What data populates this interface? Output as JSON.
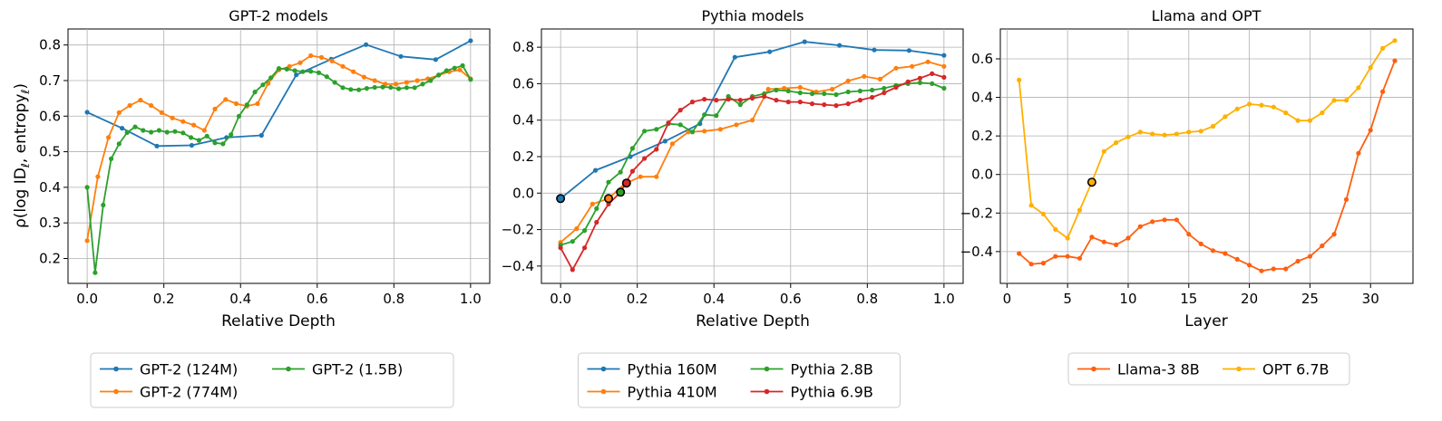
{
  "figure": {
    "ylabel": "ρ(log ID",
    "ylabel_sub": "ℓ",
    "ylabel_mid": ", entropy",
    "ylabel_sub2": "ℓ",
    "ylabel_end": ")"
  },
  "chart_data": [
    {
      "type": "line",
      "title": "GPT-2 models",
      "xlabel": "Relative Depth",
      "ylabel": "ρ(log IDℓ, entropyℓ)",
      "xlim": [
        -0.05,
        1.05
      ],
      "ylim": [
        0.13,
        0.845
      ],
      "xticks": [
        0.0,
        0.2,
        0.4,
        0.6,
        0.8,
        1.0
      ],
      "xtick_labels": [
        "0.0",
        "0.2",
        "0.4",
        "0.6",
        "0.8",
        "1.0"
      ],
      "yticks": [
        0.2,
        0.3,
        0.4,
        0.5,
        0.6,
        0.7,
        0.8
      ],
      "ytick_labels": [
        "0.2",
        "0.3",
        "0.4",
        "0.5",
        "0.6",
        "0.7",
        "0.8"
      ],
      "grid": true,
      "legend_position": "bottom",
      "legend_columns": 2,
      "series": [
        {
          "name": "GPT-2 (124M)",
          "color": "#1f77b4",
          "x": [
            0.0,
            0.0909,
            0.1818,
            0.2727,
            0.3636,
            0.4545,
            0.5455,
            0.6364,
            0.7273,
            0.8182,
            0.9091,
            1.0
          ],
          "y": [
            0.611,
            0.566,
            0.516,
            0.518,
            0.54,
            0.546,
            0.716,
            0.76,
            0.801,
            0.768,
            0.759,
            0.812
          ]
        },
        {
          "name": "GPT-2 (774M)",
          "color": "#ff7f0e",
          "x": [
            0.0,
            0.0278,
            0.0556,
            0.0833,
            0.1111,
            0.1389,
            0.1667,
            0.1944,
            0.2222,
            0.25,
            0.2778,
            0.3056,
            0.3333,
            0.3611,
            0.3889,
            0.4167,
            0.4444,
            0.4722,
            0.5,
            0.5278,
            0.5556,
            0.5833,
            0.6111,
            0.6389,
            0.6667,
            0.6944,
            0.7222,
            0.75,
            0.7778,
            0.8056,
            0.8333,
            0.8611,
            0.8889,
            0.9167,
            0.9444,
            0.9722,
            1.0
          ],
          "y": [
            0.25,
            0.43,
            0.54,
            0.61,
            0.63,
            0.645,
            0.63,
            0.61,
            0.595,
            0.585,
            0.575,
            0.56,
            0.62,
            0.647,
            0.635,
            0.628,
            0.635,
            0.692,
            0.73,
            0.74,
            0.75,
            0.77,
            0.765,
            0.755,
            0.74,
            0.725,
            0.71,
            0.7,
            0.69,
            0.69,
            0.695,
            0.7,
            0.705,
            0.715,
            0.725,
            0.73,
            0.705
          ]
        },
        {
          "name": "GPT-2 (1.5B)",
          "color": "#2ca02c",
          "x": [
            0.0,
            0.0208,
            0.0417,
            0.0625,
            0.0833,
            0.1042,
            0.125,
            0.1458,
            0.1667,
            0.1875,
            0.2083,
            0.2292,
            0.25,
            0.2708,
            0.2917,
            0.3125,
            0.3333,
            0.3542,
            0.375,
            0.3958,
            0.4167,
            0.4375,
            0.4583,
            0.4792,
            0.5,
            0.5208,
            0.5417,
            0.5625,
            0.5833,
            0.6042,
            0.625,
            0.6458,
            0.6667,
            0.6875,
            0.7083,
            0.7292,
            0.75,
            0.7708,
            0.7917,
            0.8125,
            0.8333,
            0.8542,
            0.875,
            0.8958,
            0.9167,
            0.9375,
            0.9583,
            0.9792,
            1.0
          ],
          "y": [
            0.4,
            0.16,
            0.35,
            0.48,
            0.522,
            0.554,
            0.57,
            0.56,
            0.555,
            0.56,
            0.555,
            0.557,
            0.553,
            0.54,
            0.532,
            0.544,
            0.525,
            0.522,
            0.548,
            0.6,
            0.632,
            0.668,
            0.688,
            0.708,
            0.734,
            0.732,
            0.728,
            0.725,
            0.726,
            0.722,
            0.711,
            0.695,
            0.68,
            0.675,
            0.674,
            0.678,
            0.681,
            0.682,
            0.681,
            0.677,
            0.68,
            0.68,
            0.69,
            0.7,
            0.716,
            0.728,
            0.735,
            0.742,
            0.703
          ]
        }
      ],
      "highlights": []
    },
    {
      "type": "line",
      "title": "Pythia models",
      "xlabel": "Relative Depth",
      "xlim": [
        -0.05,
        1.05
      ],
      "ylim": [
        -0.495,
        0.9
      ],
      "xticks": [
        0.0,
        0.2,
        0.4,
        0.6,
        0.8,
        1.0
      ],
      "xtick_labels": [
        "0.0",
        "0.2",
        "0.4",
        "0.6",
        "0.8",
        "1.0"
      ],
      "yticks": [
        -0.4,
        -0.2,
        0.0,
        0.2,
        0.4,
        0.6,
        0.8
      ],
      "ytick_labels": [
        "−0.4",
        "−0.2",
        "0.0",
        "0.2",
        "0.4",
        "0.6",
        "0.8"
      ],
      "grid": true,
      "legend_position": "bottom",
      "legend_columns": 2,
      "series": [
        {
          "name": "Pythia 160M",
          "color": "#1f77b4",
          "x": [
            0.0,
            0.0909,
            0.1818,
            0.2727,
            0.3636,
            0.4545,
            0.5455,
            0.6364,
            0.7273,
            0.8182,
            0.9091,
            1.0
          ],
          "y": [
            -0.03,
            0.125,
            0.2,
            0.285,
            0.38,
            0.745,
            0.775,
            0.83,
            0.81,
            0.785,
            0.782,
            0.755
          ]
        },
        {
          "name": "Pythia 410M",
          "color": "#ff7f0e",
          "x": [
            0.0,
            0.0417,
            0.0833,
            0.125,
            0.1667,
            0.2083,
            0.25,
            0.2917,
            0.3333,
            0.375,
            0.4167,
            0.4583,
            0.5,
            0.5417,
            0.5833,
            0.625,
            0.6667,
            0.7083,
            0.75,
            0.7917,
            0.8333,
            0.875,
            0.9167,
            0.9583,
            1.0
          ],
          "y": [
            -0.27,
            -0.195,
            -0.06,
            -0.03,
            0.05,
            0.09,
            0.09,
            0.27,
            0.335,
            0.34,
            0.35,
            0.375,
            0.4,
            0.57,
            0.575,
            0.58,
            0.555,
            0.57,
            0.615,
            0.64,
            0.625,
            0.685,
            0.695,
            0.72,
            0.695
          ]
        },
        {
          "name": "Pythia 2.8B",
          "color": "#2ca02c",
          "x": [
            0.0,
            0.0312,
            0.0625,
            0.0938,
            0.125,
            0.1562,
            0.1875,
            0.2188,
            0.25,
            0.2812,
            0.3125,
            0.3438,
            0.375,
            0.4062,
            0.4375,
            0.4688,
            0.5,
            0.5312,
            0.5625,
            0.5938,
            0.625,
            0.6562,
            0.6875,
            0.7188,
            0.75,
            0.7812,
            0.8125,
            0.8438,
            0.875,
            0.9062,
            0.9375,
            0.9688,
            1.0
          ],
          "y": [
            -0.285,
            -0.265,
            -0.205,
            -0.085,
            0.06,
            0.115,
            0.245,
            0.34,
            0.35,
            0.38,
            0.375,
            0.335,
            0.43,
            0.425,
            0.53,
            0.485,
            0.53,
            0.545,
            0.565,
            0.56,
            0.55,
            0.545,
            0.545,
            0.54,
            0.555,
            0.56,
            0.565,
            0.575,
            0.59,
            0.6,
            0.605,
            0.6,
            0.575
          ]
        },
        {
          "name": "Pythia 6.9B",
          "color": "#d62728",
          "x": [
            0.0,
            0.0312,
            0.0625,
            0.0938,
            0.125,
            0.1562,
            0.1875,
            0.2188,
            0.25,
            0.2812,
            0.3125,
            0.3438,
            0.375,
            0.4062,
            0.4375,
            0.4688,
            0.5,
            0.5312,
            0.5625,
            0.5938,
            0.625,
            0.6562,
            0.6875,
            0.7188,
            0.75,
            0.7812,
            0.8125,
            0.8438,
            0.875,
            0.9062,
            0.9375,
            0.9688,
            1.0
          ],
          "y": [
            -0.3,
            -0.42,
            -0.3,
            -0.16,
            -0.06,
            0.005,
            0.12,
            0.19,
            0.24,
            0.385,
            0.455,
            0.5,
            0.515,
            0.51,
            0.515,
            0.51,
            0.52,
            0.53,
            0.51,
            0.5,
            0.5,
            0.49,
            0.485,
            0.48,
            0.49,
            0.51,
            0.525,
            0.55,
            0.58,
            0.61,
            0.63,
            0.655,
            0.635
          ]
        }
      ],
      "highlights": [
        {
          "x": 0.0,
          "y": -0.03,
          "color": "#1f77b4"
        },
        {
          "x": 0.125,
          "y": -0.03,
          "color": "#ff7f0e"
        },
        {
          "x": 0.1562,
          "y": 0.005,
          "color": "#2ca02c"
        },
        {
          "x": 0.1719,
          "y": 0.055,
          "color": "#d62728"
        }
      ]
    },
    {
      "type": "line",
      "title": "Llama and OPT",
      "xlabel": "Layer",
      "xlim": [
        -0.55,
        33.5
      ],
      "ylim": [
        -0.565,
        0.755
      ],
      "xticks": [
        0,
        5,
        10,
        15,
        20,
        25,
        30
      ],
      "xtick_labels": [
        "0",
        "5",
        "10",
        "15",
        "20",
        "25",
        "30"
      ],
      "yticks": [
        -0.4,
        -0.2,
        0.0,
        0.2,
        0.4,
        0.6
      ],
      "ytick_labels": [
        "−0.4",
        "−0.2",
        "0.0",
        "0.2",
        "0.4",
        "0.6"
      ],
      "grid": true,
      "legend_position": "bottom",
      "legend_columns": 2,
      "series": [
        {
          "name": "Llama-3 8B",
          "color": "#ff5f0f",
          "x": [
            1,
            2,
            3,
            4,
            5,
            6,
            7,
            8,
            9,
            10,
            11,
            12,
            13,
            14,
            15,
            16,
            17,
            18,
            19,
            20,
            21,
            22,
            23,
            24,
            25,
            26,
            27,
            28,
            29,
            30,
            31,
            32
          ],
          "y": [
            -0.41,
            -0.465,
            -0.46,
            -0.425,
            -0.425,
            -0.435,
            -0.325,
            -0.35,
            -0.365,
            -0.33,
            -0.27,
            -0.245,
            -0.235,
            -0.235,
            -0.31,
            -0.36,
            -0.395,
            -0.41,
            -0.44,
            -0.47,
            -0.5,
            -0.49,
            -0.49,
            -0.45,
            -0.425,
            -0.37,
            -0.31,
            -0.13,
            0.11,
            0.23,
            0.43,
            0.59
          ]
        },
        {
          "name": "OPT 6.7B",
          "color": "#ffb000",
          "x": [
            1,
            2,
            3,
            4,
            5,
            6,
            7,
            8,
            9,
            10,
            11,
            12,
            13,
            14,
            15,
            16,
            17,
            18,
            19,
            20,
            21,
            22,
            23,
            24,
            25,
            26,
            27,
            28,
            29,
            30,
            31,
            32
          ],
          "y": [
            0.49,
            -0.16,
            -0.205,
            -0.285,
            -0.33,
            -0.185,
            -0.04,
            0.12,
            0.165,
            0.195,
            0.22,
            0.21,
            0.205,
            0.21,
            0.22,
            0.225,
            0.25,
            0.3,
            0.34,
            0.365,
            0.36,
            0.35,
            0.32,
            0.28,
            0.28,
            0.32,
            0.385,
            0.385,
            0.45,
            0.555,
            0.655,
            0.695
          ]
        }
      ],
      "highlights": [
        {
          "x": 7,
          "y": -0.04,
          "color": "#ffb000"
        }
      ]
    }
  ]
}
